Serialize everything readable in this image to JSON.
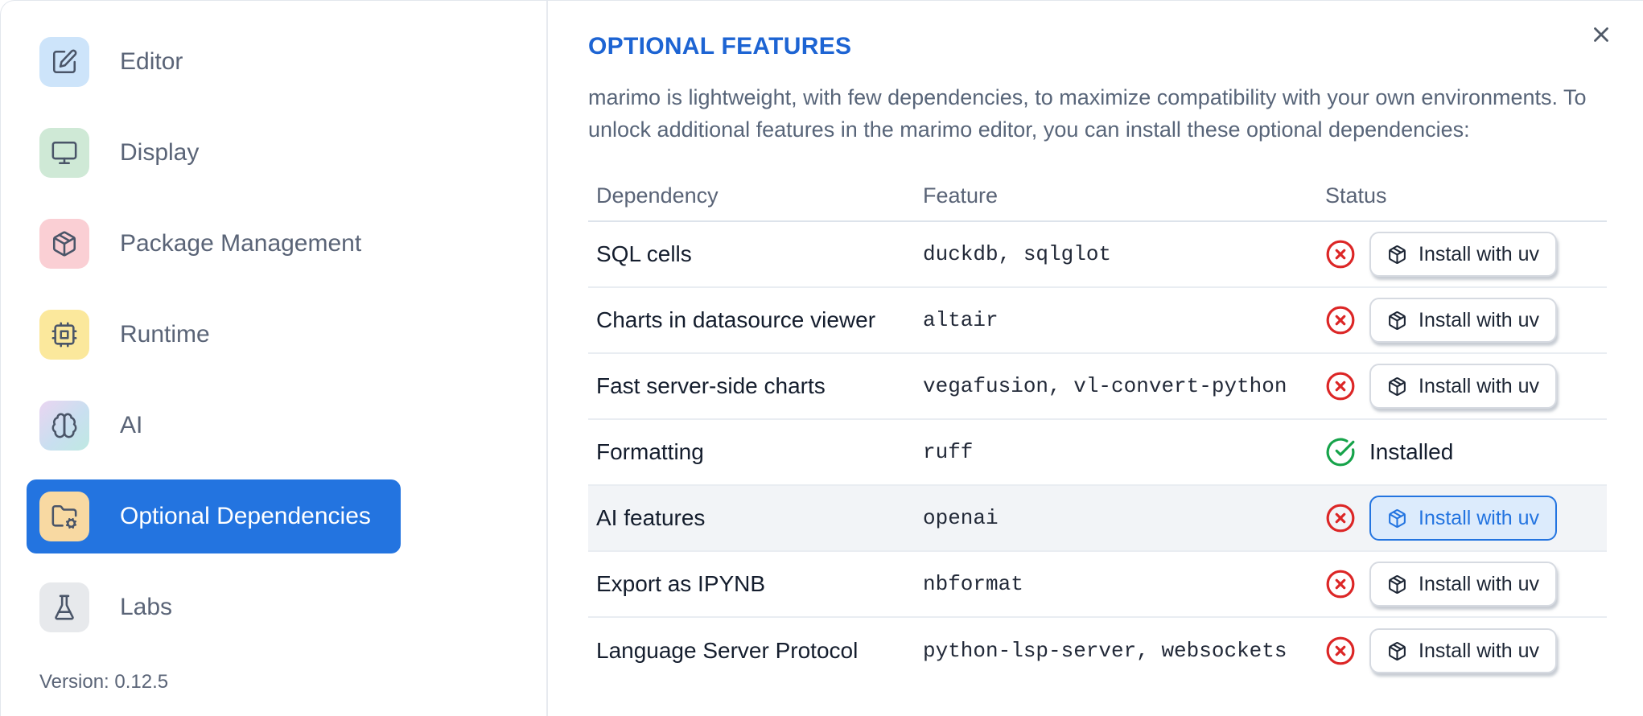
{
  "sidebar": {
    "items": [
      {
        "label": "Editor",
        "icon": "edit-icon",
        "icon_bg": "#cde4fa",
        "selected": false
      },
      {
        "label": "Display",
        "icon": "monitor-icon",
        "icon_bg": "#cfe9d6",
        "selected": false
      },
      {
        "label": "Package Management",
        "icon": "package-icon",
        "icon_bg": "#facfd4",
        "selected": false
      },
      {
        "label": "Runtime",
        "icon": "cpu-icon",
        "icon_bg": "#fbe89c",
        "selected": false
      },
      {
        "label": "AI",
        "icon": "brain-icon",
        "icon_bg": "linear-gradient(135deg,#ead5f1 0%,#c9dff0 55%,#bfe9e2 100%)",
        "selected": false
      },
      {
        "label": "Optional Dependencies",
        "icon": "folder-cog-icon",
        "icon_bg": "#f8d9a2",
        "selected": true
      },
      {
        "label": "Labs",
        "icon": "flask-icon",
        "icon_bg": "#e7e9ec",
        "selected": false
      }
    ],
    "version": "Version: 0.12.5"
  },
  "panel": {
    "title": "OPTIONAL FEATURES",
    "description": "marimo is lightweight, with few dependencies, to maximize compatibility with your own environments. To unlock additional features in the marimo editor, you can install these optional dependencies:",
    "close_icon": "x-icon",
    "table": {
      "headers": [
        "Dependency",
        "Feature",
        "Status"
      ],
      "install_button_label": "Install with uv",
      "installed_label": "Installed",
      "rows": [
        {
          "dependency": "SQL cells",
          "feature": "duckdb, sqlglot",
          "installed": false,
          "highlighted": false
        },
        {
          "dependency": "Charts in datasource viewer",
          "feature": "altair",
          "installed": false,
          "highlighted": false
        },
        {
          "dependency": "Fast server-side charts",
          "feature": "vegafusion, vl-convert-python",
          "installed": false,
          "highlighted": false
        },
        {
          "dependency": "Formatting",
          "feature": "ruff",
          "installed": true,
          "highlighted": false
        },
        {
          "dependency": "AI features",
          "feature": "openai",
          "installed": false,
          "highlighted": true
        },
        {
          "dependency": "Export as IPYNB",
          "feature": "nbformat",
          "installed": false,
          "highlighted": false
        },
        {
          "dependency": "Language Server Protocol",
          "feature": "python-lsp-server, websockets",
          "installed": false,
          "highlighted": false
        }
      ]
    }
  },
  "colors": {
    "accent": "#2374e0",
    "title_blue": "#1d64d3",
    "danger": "#dc2626",
    "success": "#16a34a"
  }
}
